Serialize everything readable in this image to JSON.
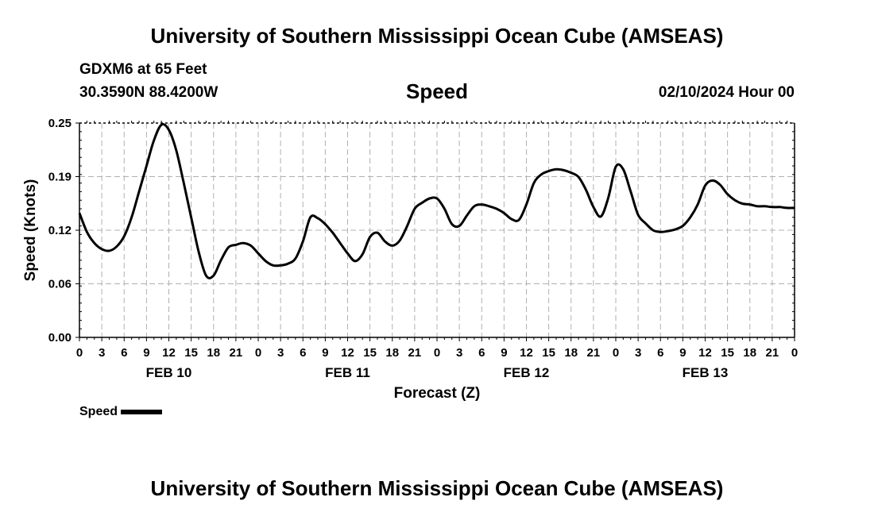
{
  "header": {
    "title_top": "University of Southern Mississippi Ocean Cube (AMSEAS)",
    "station": "GDXM6 at 65 Feet",
    "location": "30.3590N  88.4200W",
    "plot_title": "Speed",
    "datetime": "02/10/2024 Hour 00"
  },
  "footer": {
    "title_bottom": "University of Southern Mississippi Ocean Cube (AMSEAS)"
  },
  "chart_data": {
    "type": "line",
    "title": "Speed",
    "xlabel": "Forecast (Z)",
    "ylabel": "Speed (Knots)",
    "x_units": "hours since 02/10/2024 00Z",
    "xlim": [
      0,
      96
    ],
    "ylim": [
      0.0,
      0.25
    ],
    "y_ticks": [
      "0.00",
      "0.06",
      "0.12",
      "0.19",
      "0.25"
    ],
    "y_tick_values": [
      0.0,
      0.0625,
      0.125,
      0.1875,
      0.25
    ],
    "x_tick_labels": [
      "0",
      "3",
      "6",
      "9",
      "12",
      "15",
      "18",
      "21",
      "0",
      "3",
      "6",
      "9",
      "12",
      "15",
      "18",
      "21",
      "0",
      "3",
      "6",
      "9",
      "12",
      "15",
      "18",
      "21",
      "0",
      "3",
      "6",
      "9",
      "12",
      "15",
      "18",
      "21",
      "0"
    ],
    "day_labels": [
      {
        "label": "FEB 10",
        "hour": 12
      },
      {
        "label": "FEB 11",
        "hour": 36
      },
      {
        "label": "FEB 12",
        "hour": 60
      },
      {
        "label": "FEB 13",
        "hour": 84
      }
    ],
    "grid": true,
    "legend": "bottom-left",
    "series": [
      {
        "name": "Speed",
        "color": "#000000",
        "x": [
          0,
          1,
          2,
          3,
          4,
          5,
          6,
          7,
          8,
          9,
          10,
          11,
          12,
          13,
          14,
          15,
          16,
          17,
          18,
          19,
          20,
          21,
          22,
          23,
          24,
          25,
          26,
          27,
          28,
          29,
          30,
          31,
          32,
          33,
          34,
          35,
          36,
          37,
          38,
          39,
          40,
          41,
          42,
          43,
          44,
          45,
          46,
          47,
          48,
          49,
          50,
          51,
          52,
          53,
          54,
          55,
          56,
          57,
          58,
          59,
          60,
          61,
          62,
          63,
          64,
          65,
          66,
          67,
          68,
          69,
          70,
          71,
          72,
          73,
          74,
          75,
          76,
          77,
          78,
          79,
          80,
          81,
          82,
          83,
          84,
          85,
          86,
          87,
          88,
          89,
          90,
          91,
          92,
          93,
          94,
          95,
          96
        ],
        "values": [
          0.145,
          0.123,
          0.11,
          0.103,
          0.101,
          0.106,
          0.118,
          0.14,
          0.17,
          0.2,
          0.23,
          0.248,
          0.242,
          0.218,
          0.18,
          0.14,
          0.1,
          0.072,
          0.072,
          0.09,
          0.105,
          0.108,
          0.11,
          0.107,
          0.098,
          0.089,
          0.084,
          0.084,
          0.086,
          0.092,
          0.112,
          0.14,
          0.139,
          0.132,
          0.122,
          0.11,
          0.098,
          0.089,
          0.097,
          0.117,
          0.122,
          0.112,
          0.107,
          0.113,
          0.13,
          0.15,
          0.157,
          0.162,
          0.162,
          0.15,
          0.132,
          0.13,
          0.142,
          0.153,
          0.155,
          0.153,
          0.15,
          0.145,
          0.138,
          0.137,
          0.155,
          0.18,
          0.19,
          0.194,
          0.196,
          0.195,
          0.192,
          0.187,
          0.172,
          0.152,
          0.141,
          0.163,
          0.199,
          0.196,
          0.17,
          0.143,
          0.133,
          0.125,
          0.123,
          0.124,
          0.126,
          0.13,
          0.14,
          0.155,
          0.177,
          0.183,
          0.178,
          0.167,
          0.16,
          0.156,
          0.155,
          0.153,
          0.153,
          0.152,
          0.152,
          0.151,
          0.151
        ]
      }
    ]
  }
}
